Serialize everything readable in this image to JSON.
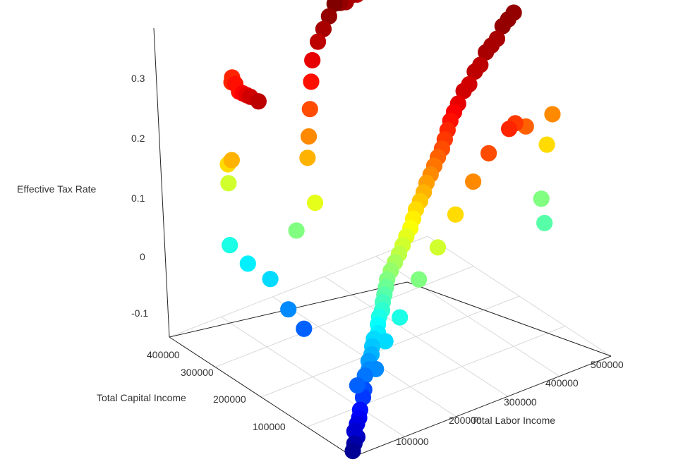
{
  "chart_data": {
    "type": "scatter",
    "projection": "3d",
    "title": "",
    "xlabel": "Total Labor Income",
    "ylabel": "Total Capital Income",
    "zlabel": "Effective Tax Rate",
    "xlim": [
      0,
      520000
    ],
    "ylim": [
      0,
      420000
    ],
    "zlim": [
      -0.15,
      0.35
    ],
    "x_ticks": [
      "100000",
      "200000",
      "300000",
      "400000",
      "500000"
    ],
    "y_ticks": [
      "100000",
      "200000",
      "300000",
      "400000"
    ],
    "z_ticks": [
      "-0.1",
      "0",
      "0.1",
      "0.2",
      "0.3"
    ],
    "grid": "on",
    "legend": "none",
    "colormap": "jet: blue (low) to cyan, green, yellow, orange, red (high Effective Tax Rate)",
    "points": [
      [
        0,
        0,
        -0.14
      ],
      [
        5000,
        2000,
        -0.13
      ],
      [
        10000,
        1000,
        -0.12
      ],
      [
        6000,
        3000,
        -0.11
      ],
      [
        12000,
        4000,
        -0.1
      ],
      [
        15000,
        2500,
        -0.09
      ],
      [
        20000,
        6000,
        -0.08
      ],
      [
        25000,
        5000,
        -0.06
      ],
      [
        30000,
        8000,
        -0.05
      ],
      [
        18000,
        10000,
        -0.04
      ],
      [
        35000,
        12000,
        -0.03
      ],
      [
        40000,
        9000,
        -0.02
      ],
      [
        45000,
        15000,
        -0.01
      ],
      [
        50000,
        14000,
        0.0
      ],
      [
        55000,
        18000,
        0.01
      ],
      [
        60000,
        20000,
        0.02
      ],
      [
        65000,
        16000,
        0.03
      ],
      [
        70000,
        22000,
        0.04
      ],
      [
        75000,
        25000,
        0.05
      ],
      [
        80000,
        24000,
        0.06
      ],
      [
        85000,
        28000,
        0.07
      ],
      [
        90000,
        30000,
        0.08
      ],
      [
        95000,
        32000,
        0.09
      ],
      [
        100000,
        35000,
        0.1
      ],
      [
        110000,
        38000,
        0.11
      ],
      [
        120000,
        40000,
        0.12
      ],
      [
        130000,
        42000,
        0.13
      ],
      [
        140000,
        45000,
        0.14
      ],
      [
        150000,
        48000,
        0.15
      ],
      [
        160000,
        50000,
        0.16
      ],
      [
        170000,
        55000,
        0.17
      ],
      [
        180000,
        60000,
        0.18
      ],
      [
        190000,
        62000,
        0.19
      ],
      [
        200000,
        65000,
        0.2
      ],
      [
        210000,
        70000,
        0.21
      ],
      [
        220000,
        72000,
        0.22
      ],
      [
        230000,
        75000,
        0.23
      ],
      [
        240000,
        78000,
        0.24
      ],
      [
        250000,
        80000,
        0.25
      ],
      [
        260000,
        85000,
        0.26
      ],
      [
        270000,
        90000,
        0.27
      ],
      [
        280000,
        95000,
        0.28
      ],
      [
        290000,
        98000,
        0.29
      ],
      [
        300000,
        100000,
        0.3
      ],
      [
        320000,
        110000,
        0.31
      ],
      [
        340000,
        120000,
        0.31
      ],
      [
        360000,
        130000,
        0.32
      ],
      [
        380000,
        140000,
        0.32
      ],
      [
        400000,
        150000,
        0.33
      ],
      [
        420000,
        160000,
        0.33
      ],
      [
        440000,
        170000,
        0.33
      ],
      [
        460000,
        180000,
        0.34
      ],
      [
        480000,
        190000,
        0.34
      ],
      [
        500000,
        200000,
        0.34
      ],
      [
        30000,
        250000,
        0.32
      ],
      [
        40000,
        280000,
        0.31
      ],
      [
        50000,
        300000,
        0.3
      ],
      [
        60000,
        320000,
        0.29
      ],
      [
        70000,
        340000,
        0.28
      ],
      [
        80000,
        360000,
        0.28
      ],
      [
        90000,
        380000,
        0.27
      ],
      [
        100000,
        390000,
        0.27
      ],
      [
        20000,
        300000,
        0.2
      ],
      [
        30000,
        320000,
        0.18
      ],
      [
        40000,
        330000,
        0.14
      ],
      [
        25000,
        310000,
        0.05
      ],
      [
        35000,
        280000,
        0.03
      ],
      [
        45000,
        240000,
        0.02
      ],
      [
        55000,
        210000,
        -0.02
      ],
      [
        60000,
        180000,
        -0.04
      ],
      [
        80000,
        220000,
        0.1
      ],
      [
        100000,
        200000,
        0.15
      ],
      [
        120000,
        240000,
        0.2
      ],
      [
        140000,
        260000,
        0.22
      ],
      [
        160000,
        280000,
        0.25
      ],
      [
        180000,
        300000,
        0.28
      ],
      [
        200000,
        320000,
        0.3
      ],
      [
        220000,
        330000,
        0.32
      ],
      [
        240000,
        340000,
        0.33
      ],
      [
        260000,
        350000,
        0.34
      ],
      [
        280000,
        360000,
        0.35
      ],
      [
        300000,
        370000,
        0.34
      ],
      [
        320000,
        380000,
        0.33
      ],
      [
        340000,
        390000,
        0.33
      ],
      [
        360000,
        400000,
        0.32
      ],
      [
        450000,
        80000,
        0.1
      ],
      [
        470000,
        90000,
        0.18
      ],
      [
        490000,
        100000,
        0.22
      ],
      [
        430000,
        50000,
        0.08
      ],
      [
        410000,
        70000,
        0.24
      ],
      [
        380000,
        60000,
        0.26
      ],
      [
        350000,
        40000,
        0.27
      ],
      [
        300000,
        30000,
        0.25
      ],
      [
        260000,
        20000,
        0.22
      ],
      [
        220000,
        15000,
        0.18
      ],
      [
        180000,
        10000,
        0.14
      ],
      [
        140000,
        8000,
        0.1
      ],
      [
        100000,
        6000,
        0.05
      ],
      [
        70000,
        5000,
        0.02
      ],
      [
        50000,
        4000,
        -0.02
      ]
    ]
  }
}
